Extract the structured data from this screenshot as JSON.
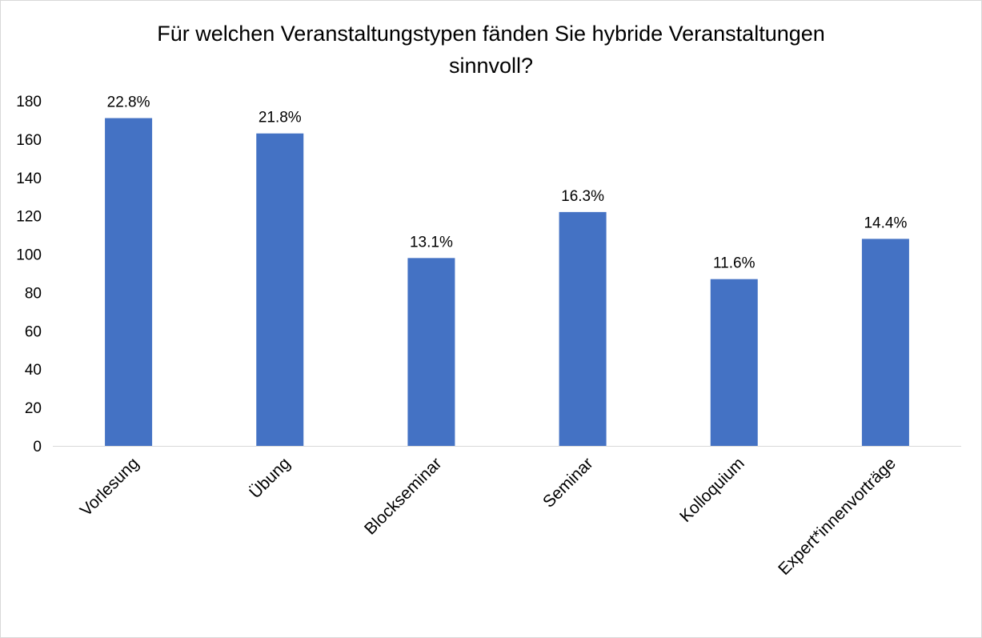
{
  "chart_data": {
    "type": "bar",
    "title_lines": [
      "Für welchen Veranstaltungstypen fänden Sie hybride Veranstaltungen",
      "sinnvoll?"
    ],
    "categories": [
      "Vorlesung",
      "Übung",
      "Blockseminar",
      "Seminar",
      "Kolloquium",
      "Expert*innenvorträge"
    ],
    "values": [
      171,
      163,
      98,
      122,
      87,
      108
    ],
    "data_labels": [
      "22.8%",
      "21.8%",
      "13.1%",
      "16.3%",
      "11.6%",
      "14.4%"
    ],
    "ylim": [
      0,
      180
    ],
    "yticks": [
      "0",
      "20",
      "40",
      "60",
      "80",
      "100",
      "120",
      "140",
      "160",
      "180"
    ],
    "xlabel": "",
    "ylabel": "",
    "grid": false,
    "legend": "none",
    "bar_color": "#4472c4"
  }
}
